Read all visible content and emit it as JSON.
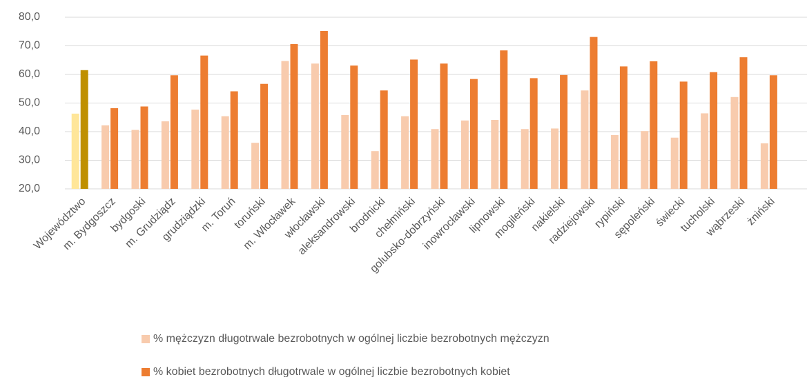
{
  "chart_data": {
    "type": "bar",
    "categories": [
      "Województwo",
      "m. Bydgoszcz",
      "bydgoski",
      "m. Grudziądz",
      "grudziądzki",
      "m. Toruń",
      "toruński",
      "m. Włocławek",
      "włocławski",
      "aleksandrowski",
      "brodnicki",
      "chełmiński",
      "golubsko-dobrzyński",
      "inowrocławski",
      "lipnowski",
      "mogileński",
      "nakielski",
      "radziejowski",
      "rypiński",
      "sępoleński",
      "świecki",
      "tucholski",
      "wąbrzeski",
      "żniński"
    ],
    "highlight_category": "Województwo",
    "series": [
      {
        "name": "% mężczyzn długotrwale bezrobotnych w ogólnej liczbie bezrobotnych mężczyzn",
        "color": "#f8cbad",
        "highlight_color": "#ffe699",
        "values": [
          46.3,
          42.2,
          40.6,
          43.6,
          47.7,
          45.4,
          36.1,
          64.7,
          63.8,
          45.8,
          33.2,
          45.4,
          40.9,
          43.9,
          44.1,
          40.9,
          41.1,
          54.4,
          38.8,
          40.2,
          37.9,
          46.4,
          52.1,
          35.9
        ]
      },
      {
        "name": "% kobiet bezrobotnych długotrwale w ogólnej liczbie bezrobotnych kobiet",
        "color": "#ed7d31",
        "highlight_color": "#bf9000",
        "values": [
          61.5,
          48.2,
          48.8,
          59.7,
          66.6,
          54.1,
          56.7,
          70.6,
          75.2,
          63.1,
          54.4,
          65.2,
          63.8,
          58.4,
          68.4,
          58.7,
          59.8,
          73.1,
          62.8,
          64.6,
          57.5,
          60.8,
          66.0,
          59.7
        ]
      }
    ],
    "ylim": [
      20,
      80
    ],
    "yticks": [
      {
        "value": 20,
        "label": "20,0"
      },
      {
        "value": 30,
        "label": "30,0"
      },
      {
        "value": 40,
        "label": "40,0"
      },
      {
        "value": 50,
        "label": "50,0"
      },
      {
        "value": 60,
        "label": "60,0"
      },
      {
        "value": 70,
        "label": "70,0"
      },
      {
        "value": 80,
        "label": "80,0"
      }
    ],
    "grid": true
  }
}
